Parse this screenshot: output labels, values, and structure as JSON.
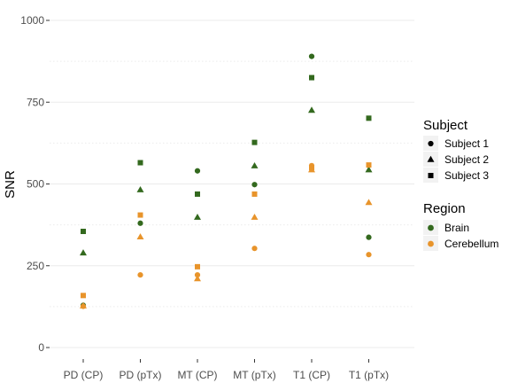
{
  "chart_data": {
    "type": "scatter",
    "title": "",
    "xlabel": "",
    "ylabel": "SNR",
    "ylim": [
      0,
      1000
    ],
    "yticks": [
      0,
      250,
      500,
      750,
      1000
    ],
    "categories": [
      "PD (CP)",
      "PD (pTx)",
      "MT (CP)",
      "MT (pTx)",
      "T1 (CP)",
      "T1 (pTx)"
    ],
    "grid": true,
    "legend_placement": "right",
    "legends": {
      "subject": {
        "title": "Subject",
        "entries": [
          {
            "label": "Subject 1",
            "shape": "circle"
          },
          {
            "label": "Subject 2",
            "shape": "triangle"
          },
          {
            "label": "Subject 3",
            "shape": "square"
          }
        ]
      },
      "region": {
        "title": "Region",
        "entries": [
          {
            "label": "Brain",
            "color": "#33691e"
          },
          {
            "label": "Cerebellum",
            "color": "#e8942b"
          }
        ]
      }
    },
    "series": [
      {
        "subject": "Subject 1",
        "region": "Brain",
        "values": [
          129,
          380,
          540,
          498,
          890,
          337
        ]
      },
      {
        "subject": "Subject 1",
        "region": "Cerebellum",
        "values": [
          126,
          222,
          222,
          303,
          556,
          284
        ]
      },
      {
        "subject": "Subject 2",
        "region": "Brain",
        "values": [
          289,
          482,
          398,
          555,
          725,
          543
        ]
      },
      {
        "subject": "Subject 2",
        "region": "Cerebellum",
        "values": [
          127,
          338,
          210,
          398,
          543,
          443
        ]
      },
      {
        "subject": "Subject 3",
        "region": "Brain",
        "values": [
          355,
          565,
          469,
          627,
          825,
          701
        ]
      },
      {
        "subject": "Subject 3",
        "region": "Cerebellum",
        "values": [
          159,
          405,
          247,
          469,
          550,
          558
        ]
      }
    ]
  }
}
